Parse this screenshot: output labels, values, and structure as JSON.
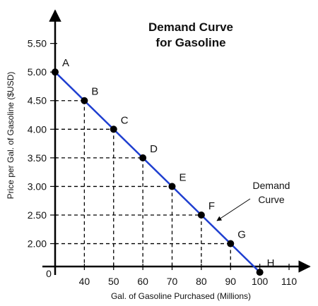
{
  "chart_data": {
    "type": "line",
    "title": [
      "Demand Curve",
      "for Gasoline"
    ],
    "xlabel": "Gal. of Gasoline Purchased (Millions)",
    "ylabel": "Price per Gal. of Gasoline ($USD)",
    "origin_label": "0",
    "xlim": [
      30,
      117
    ],
    "ylim": [
      1.6,
      6.05
    ],
    "x_ticks": [
      {
        "value": 40,
        "label": "40"
      },
      {
        "value": 50,
        "label": "50"
      },
      {
        "value": 60,
        "label": "60"
      },
      {
        "value": 70,
        "label": "70"
      },
      {
        "value": 80,
        "label": "80"
      },
      {
        "value": 90,
        "label": "90"
      },
      {
        "value": 100,
        "label": "100"
      },
      {
        "value": 110,
        "label": "110"
      }
    ],
    "y_ticks": [
      {
        "value": 2.0,
        "label": "2.00"
      },
      {
        "value": 2.5,
        "label": "2.50"
      },
      {
        "value": 3.0,
        "label": "3.00"
      },
      {
        "value": 3.5,
        "label": "3.50"
      },
      {
        "value": 4.0,
        "label": "4.00"
      },
      {
        "value": 4.5,
        "label": "4.50"
      },
      {
        "value": 5.0,
        "label": "5.00"
      },
      {
        "value": 5.5,
        "label": "5.50"
      }
    ],
    "series": [
      {
        "name": "Demand Curve",
        "color": "#1f3fd0",
        "points": [
          {
            "label": "A",
            "x": 30,
            "y": 5.0
          },
          {
            "label": "B",
            "x": 40,
            "y": 4.5
          },
          {
            "label": "C",
            "x": 50,
            "y": 4.0
          },
          {
            "label": "D",
            "x": 60,
            "y": 3.5
          },
          {
            "label": "E",
            "x": 70,
            "y": 3.0
          },
          {
            "label": "F",
            "x": 80,
            "y": 2.5
          },
          {
            "label": "G",
            "x": 90,
            "y": 2.0
          },
          {
            "label": "H",
            "x": 100,
            "y": 1.5
          }
        ]
      }
    ],
    "annotation": {
      "lines": [
        "Demand",
        "Curve"
      ],
      "points_to": "Demand Curve"
    },
    "guide_lines": "dashed",
    "grid": false
  }
}
